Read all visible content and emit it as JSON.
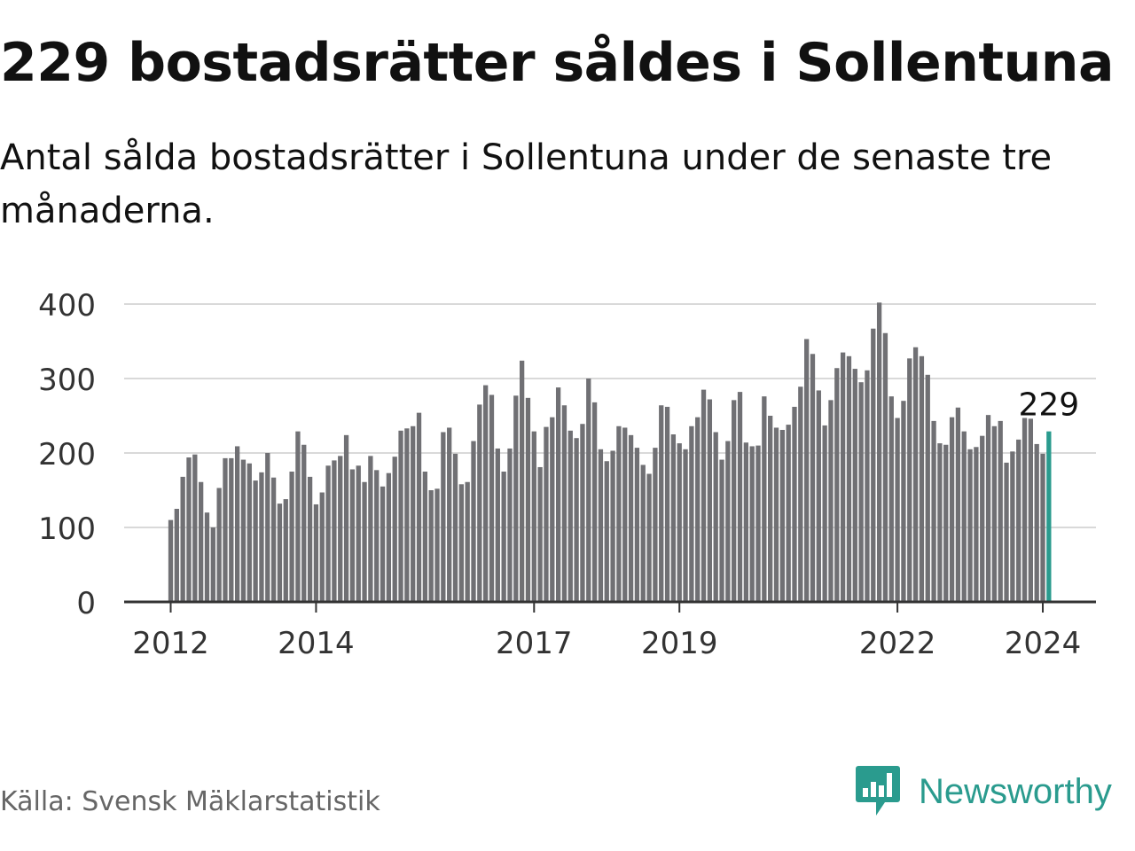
{
  "title": "229 bostadsrätter såldes i Sollentuna",
  "subtitle": "Antal sålda bostadsrätter i Sollentuna under de senaste tre månaderna.",
  "source": "Källa: Svensk Mäklarstatistik",
  "brand": "Newsworthy",
  "colors": {
    "bar": "#707074",
    "highlight": "#2a9b8e",
    "grid": "#d9d9d9",
    "axis": "#333333"
  },
  "chart_data": {
    "type": "bar",
    "title": "",
    "xlabel": "",
    "ylabel": "",
    "ylim": [
      0,
      400
    ],
    "yticks": [
      0,
      100,
      200,
      300,
      400
    ],
    "xticks": [
      "2012",
      "2014",
      "2017",
      "2019",
      "2022",
      "2024"
    ],
    "start": "2012-01",
    "frequency": "monthly",
    "highlight_label": "229",
    "values": [
      110,
      125,
      168,
      194,
      198,
      161,
      120,
      100,
      153,
      193,
      193,
      209,
      191,
      186,
      163,
      174,
      200,
      167,
      132,
      138,
      175,
      229,
      211,
      168,
      131,
      147,
      183,
      190,
      196,
      224,
      178,
      183,
      161,
      196,
      177,
      155,
      173,
      195,
      230,
      233,
      236,
      254,
      175,
      150,
      152,
      228,
      234,
      199,
      158,
      161,
      216,
      265,
      291,
      278,
      206,
      175,
      206,
      277,
      324,
      274,
      229,
      181,
      235,
      248,
      288,
      264,
      230,
      220,
      239,
      300,
      268,
      205,
      189,
      203,
      236,
      234,
      224,
      207,
      184,
      172,
      207,
      264,
      262,
      225,
      213,
      205,
      236,
      248,
      285,
      272,
      228,
      191,
      216,
      271,
      282,
      214,
      209,
      210,
      276,
      250,
      234,
      231,
      238,
      262,
      289,
      353,
      333,
      284,
      237,
      271,
      314,
      335,
      330,
      313,
      295,
      311,
      367,
      402,
      361,
      276,
      247,
      270,
      327,
      342,
      330,
      305,
      243,
      213,
      211,
      248,
      261,
      229,
      205,
      208,
      223,
      251,
      236,
      243,
      187,
      202,
      218,
      247,
      246,
      212,
      199,
      229
    ]
  }
}
